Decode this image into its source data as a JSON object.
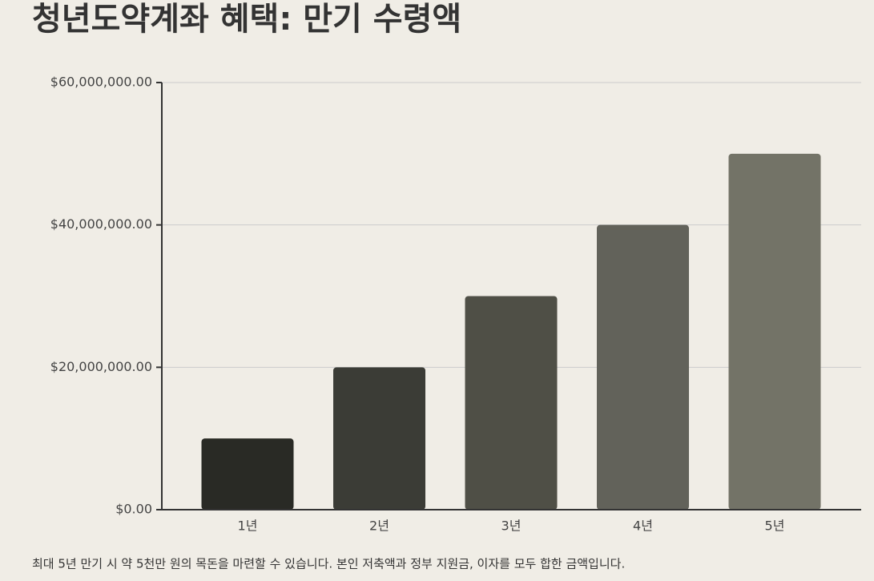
{
  "chart_data": {
    "type": "bar",
    "title": "청년도약계좌 혜택: 만기 수령액",
    "categories": [
      "1년",
      "2년",
      "3년",
      "4년",
      "5년"
    ],
    "values": [
      10000000,
      20000000,
      30000000,
      40000000,
      50000000
    ],
    "colors": [
      "#292a25",
      "#3b3c36",
      "#4f4f46",
      "#62625a",
      "#737367"
    ],
    "ylim": [
      0,
      60000000
    ],
    "yticks": [
      {
        "value": 0,
        "label": "$0.00"
      },
      {
        "value": 20000000,
        "label": "$20,000,000.00"
      },
      {
        "value": 40000000,
        "label": "$40,000,000.00"
      },
      {
        "value": 60000000,
        "label": "$60,000,000.00"
      }
    ],
    "grid": true,
    "caption": "최대 5년 만기 시 약 5천만 원의 목돈을 마련할 수 있습니다. 본인 저축액과 정부 지원금, 이자를 모두 합한 금액입니다."
  }
}
